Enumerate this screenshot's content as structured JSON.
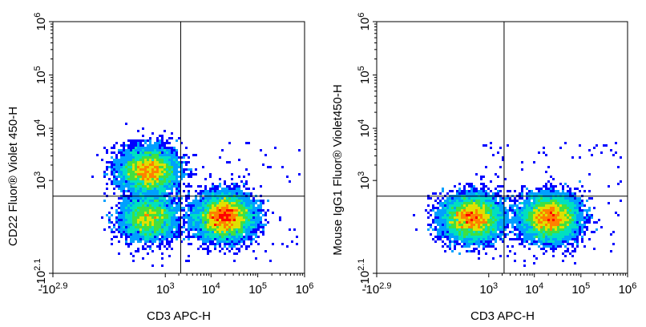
{
  "chart_data": [
    {
      "type": "scatter",
      "subtype": "flow-cytometry pseudocolor density plot",
      "title": "",
      "xlabel": "CD3 APC-H",
      "ylabel": "CD22 Fluor® Violet 450-H",
      "x_scale": "biexponential",
      "y_scale": "biexponential",
      "x_ticks": [
        {
          "base": "-10",
          "exp": "2.9",
          "value": -794
        },
        {
          "base": "10",
          "exp": "3",
          "value": 1000
        },
        {
          "base": "10",
          "exp": "4",
          "value": 10000
        },
        {
          "base": "10",
          "exp": "5",
          "value": 100000
        },
        {
          "base": "10",
          "exp": "6",
          "value": 1000000
        }
      ],
      "y_ticks": [
        {
          "base": "-10",
          "exp": "2.1",
          "value": -126
        },
        {
          "base": "10",
          "exp": "3",
          "value": 1000
        },
        {
          "base": "10",
          "exp": "4",
          "value": 10000
        },
        {
          "base": "10",
          "exp": "5",
          "value": 100000
        },
        {
          "base": "10",
          "exp": "6",
          "value": 1000000
        }
      ],
      "xlim": [
        -794,
        1000000
      ],
      "ylim": [
        -126,
        1000000
      ],
      "gate_x": 2200,
      "gate_y": 480,
      "populations": [
        {
          "x": 420,
          "y": 1550,
          "density": "high"
        },
        {
          "x": 420,
          "y": 150,
          "density": "medium"
        },
        {
          "x": 20000,
          "y": 160,
          "density": "highest"
        }
      ],
      "grid": false,
      "legend": "none"
    },
    {
      "type": "scatter",
      "subtype": "flow-cytometry pseudocolor density plot",
      "title": "",
      "xlabel": "CD3 APC-H",
      "ylabel": "Mouse IgG1 Fluor® Violet450-H",
      "x_scale": "biexponential",
      "y_scale": "biexponential",
      "x_ticks": [
        {
          "base": "-10",
          "exp": "2.9",
          "value": -794
        },
        {
          "base": "10",
          "exp": "3",
          "value": 1000
        },
        {
          "base": "10",
          "exp": "4",
          "value": 10000
        },
        {
          "base": "10",
          "exp": "5",
          "value": 100000
        },
        {
          "base": "10",
          "exp": "6",
          "value": 1000000
        }
      ],
      "y_ticks": [
        {
          "base": "-10",
          "exp": "2.1",
          "value": -126
        },
        {
          "base": "10",
          "exp": "3",
          "value": 1000
        },
        {
          "base": "10",
          "exp": "4",
          "value": 10000
        },
        {
          "base": "10",
          "exp": "5",
          "value": 100000
        },
        {
          "base": "10",
          "exp": "6",
          "value": 1000000
        }
      ],
      "xlim": [
        -794,
        1000000
      ],
      "ylim": [
        -126,
        1000000
      ],
      "gate_x": 2200,
      "gate_y": 480,
      "populations": [
        {
          "x": 400,
          "y": 150,
          "density": "highest"
        },
        {
          "x": 22000,
          "y": 155,
          "density": "highest"
        }
      ],
      "grid": false,
      "legend": "none"
    }
  ],
  "colors": {
    "density_ramp": [
      "#0000ff",
      "#00a0ff",
      "#00e0c0",
      "#40e040",
      "#e0e000",
      "#ff8000",
      "#ff0000"
    ],
    "axis": "#000000",
    "gate_line": "#000000"
  }
}
